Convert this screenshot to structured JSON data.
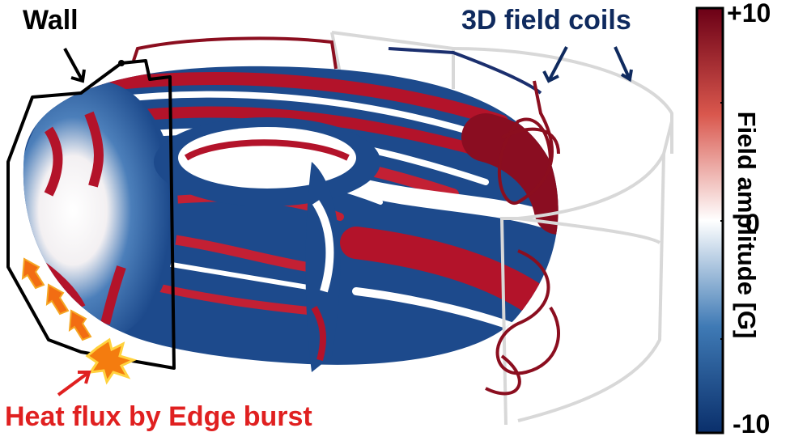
{
  "labels": {
    "wall": "Wall",
    "coils": "3D field coils",
    "heat_flux": "Heat flux by Edge burst"
  },
  "colorbar": {
    "title": "Field amplitude [G]",
    "max_label": "+10",
    "zero_label": "0",
    "min_label": "-10",
    "range": [
      -10,
      10
    ],
    "colors": [
      "#0a2f6b",
      "#3f7ab5",
      "#ffffff",
      "#d9574d",
      "#6b0016"
    ]
  },
  "colors": {
    "coil_red": "#8b0e1f",
    "coil_blue": "#1b2f6e",
    "coil_white": "#d8d8d8",
    "wall": "#000000",
    "heat_arrow": "#f26d13",
    "heat_text": "#e02020",
    "coil_text": "#0f2a5e"
  }
}
